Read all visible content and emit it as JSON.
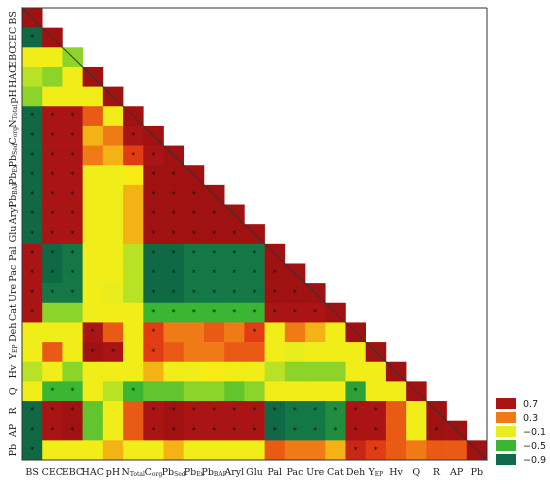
{
  "chart_data": {
    "type": "heatmap",
    "variables": [
      {
        "main": "BS",
        "sub": ""
      },
      {
        "main": "CEC",
        "sub": ""
      },
      {
        "main": "EBC",
        "sub": ""
      },
      {
        "main": "HAC",
        "sub": ""
      },
      {
        "main": "pH",
        "sub": ""
      },
      {
        "main": "N",
        "sub": "Total"
      },
      {
        "main": "C",
        "sub": "org"
      },
      {
        "main": "Pb",
        "sub": "Sed"
      },
      {
        "main": "Pb",
        "sub": "Ex"
      },
      {
        "main": "Pb",
        "sub": "BAP"
      },
      {
        "main": "Aryl",
        "sub": ""
      },
      {
        "main": "Glu",
        "sub": ""
      },
      {
        "main": "Pal",
        "sub": ""
      },
      {
        "main": "Pac",
        "sub": ""
      },
      {
        "main": "Ure",
        "sub": ""
      },
      {
        "main": "Cat",
        "sub": ""
      },
      {
        "main": "Deh",
        "sub": ""
      },
      {
        "main": "Y",
        "sub": "EP"
      },
      {
        "main": "Hv",
        "sub": ""
      },
      {
        "main": "Q",
        "sub": ""
      },
      {
        "main": "R",
        "sub": ""
      },
      {
        "main": "AP",
        "sub": ""
      },
      {
        "main": "Pb",
        "sub": ""
      }
    ],
    "value_range": [
      -1,
      1
    ],
    "legend": {
      "placement": "bottom-right",
      "entries": [
        {
          "label": "0.7",
          "color": "#aa1414"
        },
        {
          "label": "0.3",
          "color": "#f07a16"
        },
        {
          "label": "−0.1",
          "color": "#e8ee1e"
        },
        {
          "label": "−0.5",
          "color": "#3ab632"
        },
        {
          "label": "−0.9",
          "color": "#0d6a4a"
        }
      ]
    },
    "cells": [
      {
        "row": 1,
        "values": [
          0.8
        ]
      },
      {
        "row": 2,
        "values": [
          -0.9,
          0.8
        ]
      },
      {
        "row": 3,
        "values": [
          0.0,
          0.0,
          -0.3
        ]
      },
      {
        "row": 4,
        "values": [
          -0.2,
          -0.3,
          0.0,
          0.8
        ]
      },
      {
        "row": 5,
        "values": [
          -0.3,
          0.0,
          0.0,
          0.0,
          0.8
        ]
      },
      {
        "row": 6,
        "values": [
          -0.9,
          0.7,
          0.7,
          0.4,
          0.0,
          0.8
        ]
      },
      {
        "row": 7,
        "values": [
          -0.9,
          0.7,
          0.7,
          0.2,
          0.3,
          0.7,
          0.8
        ]
      },
      {
        "row": 8,
        "values": [
          -0.9,
          0.7,
          0.7,
          0.3,
          0.2,
          0.5,
          0.7,
          0.8
        ]
      },
      {
        "row": 9,
        "values": [
          -0.9,
          0.7,
          0.7,
          0.0,
          0.0,
          0.1,
          0.8,
          0.8,
          0.8
        ]
      },
      {
        "row": 10,
        "values": [
          -0.9,
          0.7,
          0.7,
          0.0,
          0.0,
          0.2,
          0.8,
          0.8,
          0.8,
          0.8
        ]
      },
      {
        "row": 11,
        "values": [
          -0.9,
          0.7,
          0.7,
          0.0,
          0.0,
          0.2,
          0.8,
          0.8,
          0.8,
          0.8,
          0.8
        ]
      },
      {
        "row": 12,
        "values": [
          -0.9,
          0.7,
          0.7,
          0.0,
          0.0,
          0.2,
          0.8,
          0.8,
          0.8,
          0.8,
          0.8,
          0.8
        ]
      },
      {
        "row": 13,
        "values": [
          0.7,
          -0.9,
          -0.8,
          0.0,
          0.0,
          -0.2,
          -0.9,
          -0.9,
          -0.8,
          -0.8,
          -0.8,
          -0.8,
          0.8
        ]
      },
      {
        "row": 14,
        "values": [
          0.7,
          -0.9,
          -0.8,
          0.0,
          0.0,
          -0.2,
          -0.9,
          -0.9,
          -0.8,
          -0.8,
          -0.8,
          -0.8,
          0.8,
          0.8
        ]
      },
      {
        "row": 15,
        "values": [
          0.7,
          -0.8,
          -0.8,
          0.0,
          -0.1,
          -0.2,
          -0.9,
          -0.9,
          -0.8,
          -0.8,
          -0.8,
          -0.8,
          0.8,
          0.8,
          0.8
        ]
      },
      {
        "row": 16,
        "values": [
          0.7,
          -0.3,
          -0.3,
          0.0,
          0.0,
          0.0,
          -0.5,
          -0.5,
          -0.5,
          -0.5,
          -0.5,
          -0.5,
          0.7,
          0.7,
          0.7,
          0.8
        ]
      },
      {
        "row": 17,
        "values": [
          0.0,
          0.0,
          0.0,
          0.7,
          0.4,
          0.0,
          0.5,
          0.3,
          0.3,
          0.4,
          0.3,
          0.5,
          0.0,
          0.3,
          0.2,
          0.0,
          0.8
        ]
      },
      {
        "row": 18,
        "values": [
          0.0,
          0.4,
          0.0,
          0.8,
          0.7,
          0.0,
          0.5,
          0.4,
          0.3,
          0.3,
          0.4,
          0.4,
          0.0,
          -0.1,
          0.0,
          0.0,
          0.0,
          0.8
        ]
      },
      {
        "row": 19,
        "values": [
          -0.2,
          0.0,
          -0.3,
          0.0,
          0.0,
          0.0,
          0.2,
          0.0,
          0.0,
          0.1,
          0.0,
          0.0,
          -0.2,
          -0.3,
          -0.3,
          -0.3,
          0.0,
          0.0,
          0.8
        ]
      },
      {
        "row": 20,
        "values": [
          0.0,
          -0.5,
          -0.5,
          0.0,
          -0.2,
          -0.5,
          -0.4,
          -0.4,
          -0.3,
          -0.3,
          -0.4,
          -0.3,
          0.0,
          0.0,
          0.0,
          0.0,
          -0.6,
          0.0,
          0.0,
          0.8
        ]
      },
      {
        "row": 21,
        "values": [
          -0.9,
          0.7,
          0.8,
          -0.4,
          0.0,
          0.4,
          0.7,
          0.8,
          0.7,
          0.7,
          0.7,
          0.7,
          -0.9,
          -0.8,
          -0.8,
          -0.7,
          0.7,
          0.7,
          0.4,
          0.0,
          0.8
        ]
      },
      {
        "row": 22,
        "values": [
          -0.9,
          0.7,
          0.8,
          -0.4,
          0.0,
          0.4,
          0.7,
          0.8,
          0.7,
          0.7,
          0.7,
          0.7,
          -0.9,
          -0.8,
          -0.8,
          -0.7,
          0.7,
          0.7,
          0.4,
          0.0,
          0.8,
          0.8
        ]
      },
      {
        "row": 23,
        "values": [
          -0.9,
          0.0,
          0.0,
          0.0,
          0.2,
          0.0,
          0.0,
          0.2,
          0.0,
          0.0,
          0.0,
          0.0,
          0.4,
          0.3,
          0.3,
          0.2,
          0.6,
          0.5,
          0.4,
          0.3,
          0.4,
          0.4,
          0.8
        ]
      }
    ]
  }
}
